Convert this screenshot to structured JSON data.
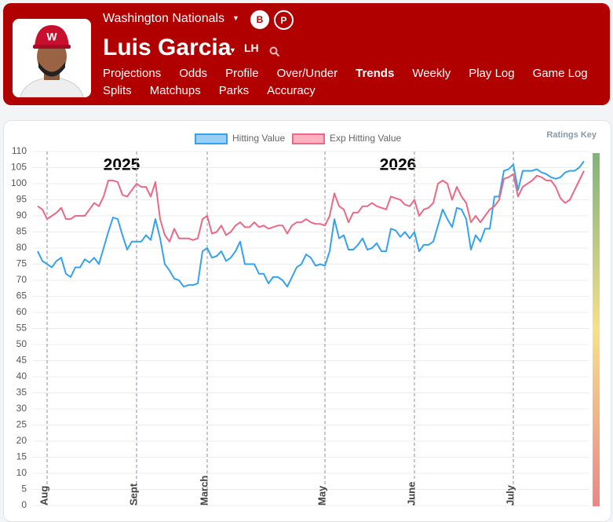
{
  "header": {
    "team": "Washington Nationals",
    "player": "Luis Garcia",
    "bats": "LH",
    "badges": [
      "B",
      "P"
    ],
    "nav": [
      "Projections",
      "Odds",
      "Profile",
      "Over/Under",
      "Trends",
      "Weekly",
      "Play Log",
      "Game Log",
      "Splits",
      "Matchups",
      "Parks",
      "Accuracy"
    ],
    "active_nav": "Trends"
  },
  "ratings_key": "Ratings Key",
  "chart_data": {
    "type": "line",
    "annotations": [
      "2025",
      "2026"
    ],
    "categories": [
      null,
      null,
      "Aug",
      null,
      null,
      null,
      null,
      null,
      null,
      null,
      null,
      null,
      null,
      null,
      null,
      null,
      null,
      null,
      null,
      null,
      null,
      "Sept",
      null,
      null,
      null,
      null,
      null,
      null,
      null,
      null,
      null,
      null,
      null,
      null,
      null,
      null,
      "March",
      null,
      null,
      null,
      null,
      null,
      null,
      null,
      null,
      null,
      null,
      null,
      null,
      null,
      null,
      null,
      null,
      null,
      null,
      null,
      null,
      null,
      null,
      null,
      null,
      "May",
      null,
      null,
      null,
      null,
      null,
      null,
      null,
      null,
      null,
      null,
      null,
      null,
      null,
      null,
      null,
      null,
      null,
      null,
      "June",
      null,
      null,
      null,
      null,
      null,
      null,
      null,
      null,
      null,
      null,
      null,
      null,
      null,
      null,
      null,
      null,
      null,
      null,
      null,
      null,
      "July",
      null,
      null,
      null,
      null,
      null,
      null,
      null,
      null,
      null,
      null,
      null,
      null,
      null,
      null,
      null
    ],
    "series": [
      {
        "name": "Hitting Value",
        "color": "#36a2eb",
        "fill": "#9ad0f5",
        "values": [
          79,
          76,
          75,
          74,
          76,
          77,
          72,
          71,
          74,
          74,
          76.5,
          75.5,
          77,
          75,
          80,
          85,
          89.5,
          89,
          84,
          79.5,
          82,
          82,
          82,
          84,
          82.5,
          89,
          83,
          75,
          73,
          70.5,
          70,
          68,
          68.5,
          68.5,
          69,
          79,
          80,
          77,
          77.5,
          79,
          76,
          77,
          79,
          82,
          75,
          75,
          75,
          72,
          72,
          69,
          71,
          71,
          70,
          68,
          71,
          74,
          75,
          78,
          77,
          74.5,
          75,
          74.5,
          79,
          89,
          83,
          84,
          79.5,
          79.5,
          81,
          83,
          79.5,
          80,
          81.5,
          79,
          79,
          86,
          85.5,
          83.5,
          85,
          83,
          85,
          79,
          81,
          81,
          82,
          87,
          92,
          89,
          86.5,
          92.5,
          92,
          89,
          79.5,
          84,
          82,
          86,
          86,
          96,
          96,
          104,
          104.5,
          106,
          98,
          104,
          104,
          104,
          104.5,
          103.5,
          103,
          102,
          101.5,
          102,
          103.5,
          104,
          104,
          105,
          107
        ]
      },
      {
        "name": "Exp Hitting Value",
        "color": "#ea6a86",
        "fill": "#ffb1c1",
        "values": [
          93,
          92,
          89,
          90,
          91,
          92.5,
          89,
          89,
          90,
          90,
          90,
          92,
          94,
          93,
          96,
          101,
          101,
          100.5,
          96.5,
          96,
          98,
          100,
          99,
          99,
          96,
          100.5,
          89,
          84,
          82,
          86,
          83,
          83,
          83,
          82.5,
          83,
          89,
          90,
          84.5,
          85,
          87,
          84,
          85,
          87,
          88,
          86.5,
          86.5,
          88,
          86.5,
          87,
          86,
          86.5,
          87,
          87,
          84.5,
          87,
          88,
          88,
          89,
          88,
          87.5,
          87.5,
          87,
          90,
          97,
          93,
          92,
          88,
          91,
          91,
          93,
          93,
          94,
          93,
          92.5,
          92,
          96,
          95.5,
          95,
          93.5,
          93,
          95,
          90,
          92,
          92.5,
          94,
          100,
          101,
          100,
          95,
          99,
          96,
          94,
          88,
          90,
          88,
          90,
          92,
          93,
          95,
          101.5,
          102,
          103,
          96,
          99,
          100,
          101,
          102.5,
          102,
          101,
          101,
          99,
          95.5,
          94,
          95,
          98,
          101,
          104
        ]
      }
    ],
    "ylim": [
      0,
      110
    ],
    "yticks": [
      0,
      5,
      10,
      15,
      20,
      25,
      30,
      35,
      40,
      45,
      50,
      55,
      60,
      65,
      70,
      75,
      80,
      85,
      90,
      95,
      100,
      105,
      110
    ],
    "grid": true
  }
}
